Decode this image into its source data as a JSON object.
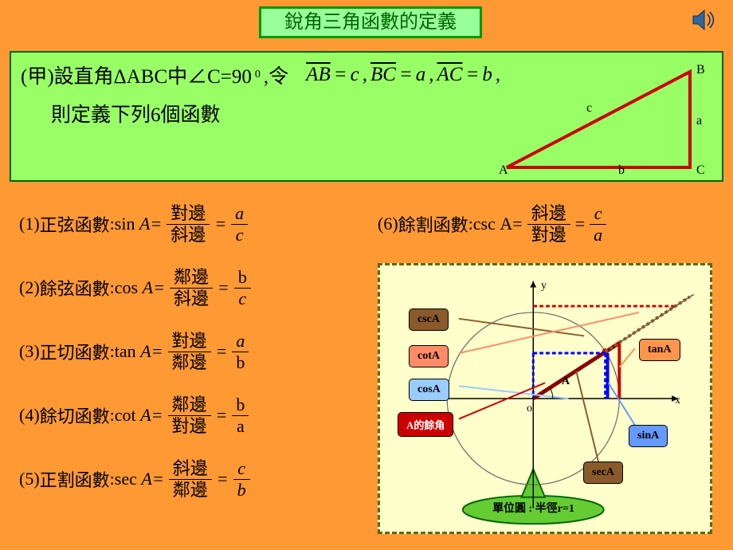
{
  "title": "銳角三角函數的定義",
  "definition": {
    "line1_prefix": "(甲)設直角ΔABC中∠C=90",
    "line1_suffix": ",令",
    "line1_eq1_lhs": "AB",
    "line1_eq1_rhs": "c",
    "line1_eq2_lhs": "BC",
    "line1_eq2_rhs": "a",
    "line1_eq3_lhs": "AC",
    "line1_eq3_rhs": "b",
    "line2": "則定義下列6個函數"
  },
  "triangle": {
    "vertexA": "A",
    "vertexB": "B",
    "vertexC": "C",
    "sideA": "a",
    "sideB": "b",
    "sideC": "c",
    "stroke": "#cc0000",
    "stroke_width": 3
  },
  "formulas": [
    {
      "n": "(1)",
      "name": "正弦函數",
      "fn": "sin",
      "arg": "A",
      "num1": "對邊",
      "den1": "斜邊",
      "num2": "a",
      "den2": "c",
      "num2_style": "italic",
      "den2_style": "italic"
    },
    {
      "n": "(2)",
      "name": "餘弦函數",
      "fn": "cos",
      "arg": "A",
      "num1": "鄰邊",
      "den1": "斜邊",
      "num2": "b",
      "den2": "c",
      "num2_style": "normal",
      "den2_style": "italic"
    },
    {
      "n": "(3)",
      "name": "正切函數",
      "fn": "tan",
      "arg": "A",
      "num1": "對邊",
      "den1": "鄰邊",
      "num2": "a",
      "den2": "b",
      "num2_style": "italic",
      "den2_style": "normal"
    },
    {
      "n": "(4)",
      "name": "餘切函數",
      "fn": "cot",
      "arg": "A",
      "num1": "鄰邊",
      "den1": "對邊",
      "num2": "b",
      "den2": "a",
      "num2_style": "normal",
      "den2_style": "normal"
    },
    {
      "n": "(5)",
      "name": "正割函數",
      "fn": "sec",
      "arg": "A",
      "num1": "斜邊",
      "den1": "鄰邊",
      "num2": "c",
      "den2": "b",
      "num2_style": "italic",
      "den2_style": "italic"
    }
  ],
  "formula6": {
    "n": "(6)",
    "name": "餘割函數",
    "fn": "csc",
    "arg": "A",
    "num1": "斜邊",
    "den1": "對邊",
    "num2": "c",
    "den2": "a",
    "num2_style": "italic",
    "den2_style": "italic"
  },
  "diagram": {
    "background": "#ffffcc",
    "border_color": "#666600",
    "circle_stroke": "#666666",
    "axis_color": "#000000",
    "x_label": "x",
    "y_label": "y",
    "origin_label": "o",
    "point_label": "A",
    "angle_deg": 33,
    "unit_circle_label": "單位圓 : 半徑r=1",
    "callouts": {
      "csc": {
        "text": "cscA",
        "bg": "#8b5a2b",
        "fg": "#000000"
      },
      "cot": {
        "text": "cotA",
        "bg": "#ff8c66",
        "fg": "#000000"
      },
      "cos": {
        "text": "cosA",
        "bg": "#99ccff",
        "fg": "#000000"
      },
      "comp": {
        "text": "A的餘角",
        "bg": "#cc0000",
        "fg": "#ffffff"
      },
      "tan": {
        "text": "tanA",
        "bg": "#ff944d",
        "fg": "#000000"
      },
      "sin": {
        "text": "sinA",
        "bg": "#6699ff",
        "fg": "#000000"
      },
      "sec": {
        "text": "secA",
        "bg": "#8b5a2b",
        "fg": "#000000"
      }
    },
    "lines": {
      "sin": {
        "color": "#0000ff",
        "width": 3
      },
      "cos": {
        "color": "#0000ff",
        "width": 3,
        "dash": "5,3"
      },
      "tan": {
        "color": "#cc0000",
        "width": 3
      },
      "sec": {
        "color": "#8b0000",
        "width": 5
      },
      "csc": {
        "color": "#cc0000",
        "width": 3,
        "dash": "5,3"
      },
      "cot": {
        "color": "#8b5a2b",
        "width": 4,
        "dash": "4,3"
      },
      "ray": {
        "color": "#333333",
        "width": 1
      }
    }
  },
  "colors": {
    "page_bg": "#ff9933",
    "title_bg": "#99ff99",
    "title_border": "#009900",
    "title_fg": "#006600",
    "def_bg": "#99ff66",
    "def_border": "#006600"
  }
}
